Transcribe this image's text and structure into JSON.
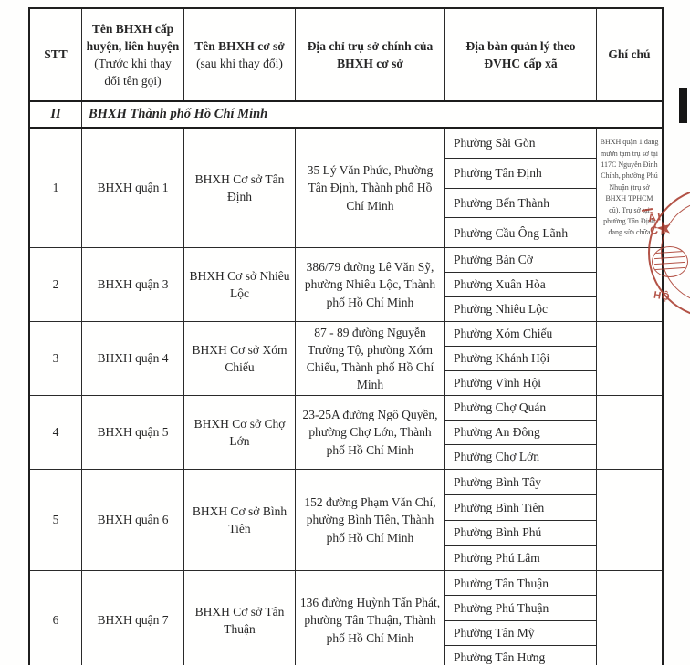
{
  "table": {
    "header": {
      "stt": "STT",
      "old_name_main": "Tên BHXH cấp huyện, liên huyện",
      "old_name_sub": "(Trước khi thay đổi tên gọi)",
      "new_name_main": "Tên BHXH cơ sở",
      "new_name_sub": "(sau khi thay đổi)",
      "address": "Địa chỉ trụ sở chính của BHXH cơ sở",
      "wards": "Địa bàn quản lý theo ĐVHC cấp xã",
      "note": "Ghí chú"
    },
    "section": {
      "index": "II",
      "title": "BHXH Thành phố Hồ Chí Minh"
    },
    "rows": [
      {
        "stt": "1",
        "old_name": "BHXH quận 1",
        "new_name": "BHXH Cơ sở Tân Định",
        "address": "35 Lý Văn Phức, Phường Tân Định, Thành phố Hồ Chí Minh",
        "wards": [
          "Phường Sài Gòn",
          "Phường Tân Định",
          "Phường Bến Thành",
          "Phường Cầu Ông Lãnh"
        ],
        "note": "BHXH quận 1 đang mượn tạm trụ sở tại 117C Nguyễn Đình Chính, phường Phú Nhuận (trụ sở BHXH TPHCM cũ). Trụ sở tại phường Tân Định đang sửa chữa"
      },
      {
        "stt": "2",
        "old_name": "BHXH quận 3",
        "new_name": "BHXH Cơ sở Nhiêu Lộc",
        "address": "386/79 đường Lê Văn Sỹ, phường Nhiêu Lộc, Thành phố Hồ Chí Minh",
        "wards": [
          "Phường Bàn Cờ",
          "Phường Xuân Hòa",
          "Phường Nhiêu Lộc"
        ],
        "note": ""
      },
      {
        "stt": "3",
        "old_name": "BHXH quận 4",
        "new_name": "BHXH Cơ sở Xóm Chiếu",
        "address": "87 - 89 đường Nguyễn Trường Tộ, phường Xóm Chiếu, Thành phố Hồ Chí Minh",
        "wards": [
          "Phường Xóm Chiếu",
          "Phường Khánh Hội",
          "Phường Vĩnh Hội"
        ],
        "note": ""
      },
      {
        "stt": "4",
        "old_name": "BHXH quận 5",
        "new_name": "BHXH Cơ sở Chợ Lớn",
        "address": "23-25A đường Ngô Quyền, phường Chợ Lớn, Thành phố Hồ Chí Minh",
        "wards": [
          "Phường Chợ Quán",
          "Phường An Đông",
          "Phường Chợ Lớn"
        ],
        "note": ""
      },
      {
        "stt": "5",
        "old_name": "BHXH quận 6",
        "new_name": "BHXH Cơ sở Bình Tiên",
        "address": "152 đường Phạm Văn Chí, phường Bình Tiên, Thành phố Hồ Chí Minh",
        "wards": [
          "Phường Bình Tây",
          "Phường Bình Tiên",
          "Phường Bình Phú",
          "Phường Phú Lâm"
        ],
        "note": ""
      },
      {
        "stt": "6",
        "old_name": "BHXH quận 7",
        "new_name": "BHXH Cơ sở Tân Thuận",
        "address": "136 đường Huỳnh Tấn Phát, phường Tân Thuận, Thành phố Hồ Chí Minh",
        "wards": [
          "Phường Tân Thuận",
          "Phường Phú Thuận",
          "Phường Tân Mỹ",
          "Phường Tân Hưng"
        ],
        "note": ""
      }
    ]
  },
  "stamp": {
    "arc_text": "ẢI C",
    "bottom_text": "· HỘ",
    "star": "★",
    "color": "#a93c2e"
  }
}
